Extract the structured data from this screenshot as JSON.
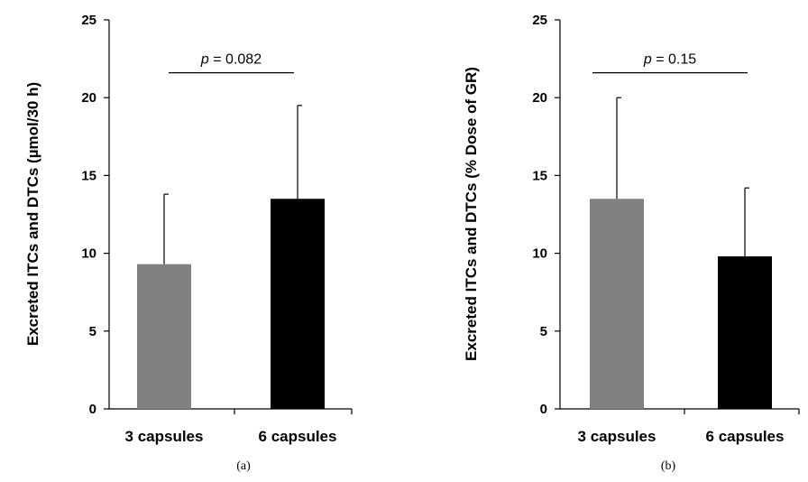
{
  "chart_data": [
    {
      "type": "bar",
      "panel_label": "(a)",
      "categories": [
        "3 capsules",
        "6 capsules"
      ],
      "values": [
        9.3,
        13.5
      ],
      "error_upper": [
        13.8,
        19.5
      ],
      "bar_colors": [
        "#808080",
        "#000000"
      ],
      "ylabel": "Excreted ITCs and DTCs (µmol/30 h)",
      "ylim": [
        0,
        25
      ],
      "yticks": [
        "0",
        "5",
        "10",
        "15",
        "20",
        "25"
      ],
      "significance": {
        "p_symbol": "p",
        "text": " = 0.082",
        "y": 21.6
      },
      "grid": false
    },
    {
      "type": "bar",
      "panel_label": "(b)",
      "categories": [
        "3 capsules",
        "6 capsules"
      ],
      "values": [
        13.5,
        9.8
      ],
      "error_upper": [
        20.0,
        14.2
      ],
      "bar_colors": [
        "#808080",
        "#000000"
      ],
      "ylabel": "Excreted ITCs and DTCs (% Dose of GR)",
      "ylim": [
        0,
        25
      ],
      "yticks": [
        "0",
        "5",
        "10",
        "15",
        "20",
        "25"
      ],
      "significance": {
        "p_symbol": "p",
        "text": " = 0.15",
        "y": 21.6
      },
      "grid": false
    }
  ]
}
